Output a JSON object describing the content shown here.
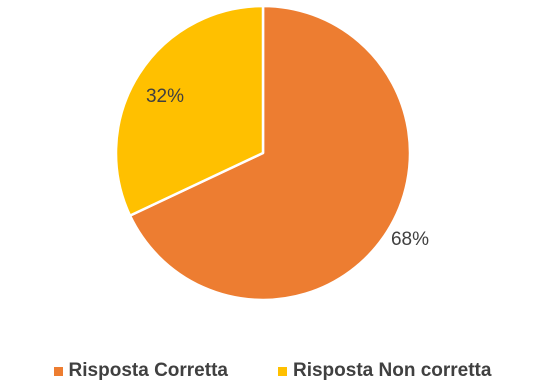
{
  "chart_data": {
    "type": "pie",
    "title": "",
    "slices": [
      {
        "name": "Risposta Corretta",
        "value": 68,
        "label": "68%",
        "color": "#ED7D31"
      },
      {
        "name": "Risposta Non corretta",
        "value": 32,
        "label": "32%",
        "color": "#FFC000"
      }
    ],
    "start_angle_deg": 0,
    "direction": "clockwise",
    "legend_position": "bottom",
    "labels_shown": "percent"
  }
}
